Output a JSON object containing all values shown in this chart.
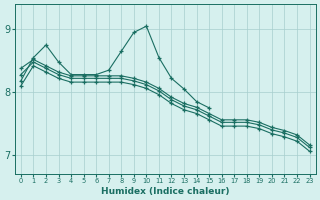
{
  "xlabel": "Humidex (Indice chaleur)",
  "xlim": [
    -0.5,
    23.5
  ],
  "ylim": [
    6.7,
    9.4
  ],
  "yticks": [
    7,
    8,
    9
  ],
  "xticks": [
    0,
    1,
    2,
    3,
    4,
    5,
    6,
    7,
    8,
    9,
    10,
    11,
    12,
    13,
    14,
    15,
    16,
    17,
    18,
    19,
    20,
    21,
    22,
    23
  ],
  "background_color": "#d6f0ee",
  "grid_color": "#a8cece",
  "line_color": "#1a6e62",
  "lines": [
    {
      "x": [
        0,
        1,
        2,
        3,
        4,
        5,
        6,
        7,
        8,
        9,
        10,
        11,
        12,
        13,
        14,
        15
      ],
      "y": [
        8.18,
        8.55,
        8.75,
        8.48,
        8.28,
        8.28,
        8.28,
        8.35,
        8.65,
        8.95,
        9.05,
        8.55,
        8.22,
        8.05,
        7.85,
        7.75
      ]
    },
    {
      "x": [
        0,
        1,
        2,
        3,
        4,
        5,
        6,
        7,
        8,
        9,
        10,
        11,
        12,
        13,
        14,
        15,
        16,
        17,
        18,
        19,
        20,
        21,
        22,
        23
      ],
      "y": [
        8.28,
        8.48,
        8.38,
        8.28,
        8.22,
        8.22,
        8.22,
        8.22,
        8.22,
        8.18,
        8.12,
        8.02,
        7.88,
        7.78,
        7.72,
        7.62,
        7.52,
        7.52,
        7.52,
        7.48,
        7.4,
        7.35,
        7.28,
        7.12
      ]
    },
    {
      "x": [
        0,
        1,
        2,
        3,
        4,
        5,
        6,
        7,
        8,
        9,
        10,
        11,
        12,
        13,
        14,
        15,
        16,
        17,
        18,
        19,
        20,
        21,
        22,
        23
      ],
      "y": [
        8.38,
        8.52,
        8.42,
        8.32,
        8.26,
        8.26,
        8.26,
        8.26,
        8.26,
        8.22,
        8.16,
        8.06,
        7.92,
        7.82,
        7.76,
        7.66,
        7.56,
        7.56,
        7.56,
        7.52,
        7.44,
        7.39,
        7.32,
        7.16
      ]
    },
    {
      "x": [
        0,
        1,
        2,
        3,
        4,
        5,
        6,
        7,
        8,
        9,
        10,
        11,
        12,
        13,
        14,
        15,
        16,
        17,
        18,
        19,
        20,
        21,
        22,
        23
      ],
      "y": [
        8.1,
        8.42,
        8.32,
        8.22,
        8.16,
        8.16,
        8.16,
        8.16,
        8.16,
        8.12,
        8.06,
        7.96,
        7.82,
        7.72,
        7.66,
        7.56,
        7.46,
        7.46,
        7.46,
        7.42,
        7.34,
        7.29,
        7.22,
        7.06
      ]
    }
  ]
}
